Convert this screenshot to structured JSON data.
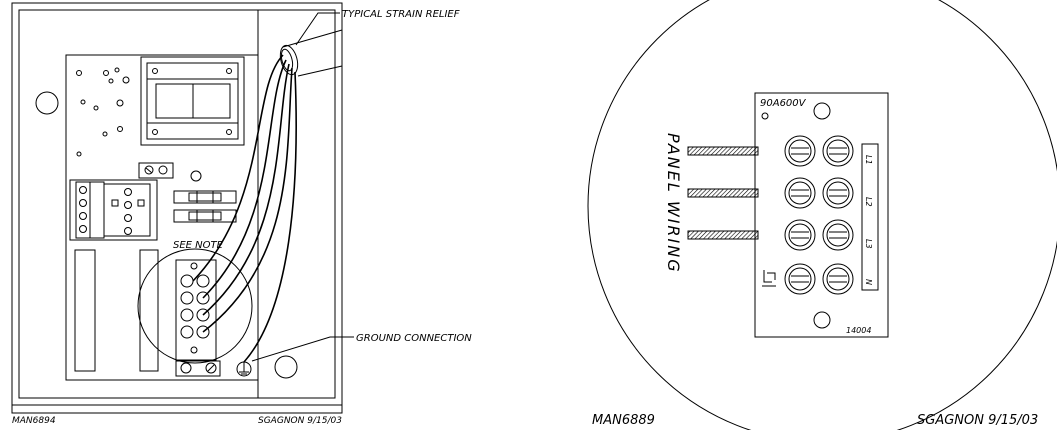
{
  "left_drawing": {
    "callouts": {
      "strain_relief": "TYPICAL STRAIN RELIEF",
      "see_note": "SEE NOTE",
      "ground_connection": "GROUND CONNECTION"
    },
    "drawing_number": "MAN6894",
    "author_date": "SGAGNON 9/15/03"
  },
  "right_drawing": {
    "rating": "90A600V",
    "panel_wiring": "PANEL WIRING",
    "terminal_labels": [
      "L1",
      "L2",
      "L3",
      "N"
    ],
    "part_number": "14004",
    "drawing_number": "MAN6889",
    "author_date": "SGAGNON 9/15/03"
  }
}
